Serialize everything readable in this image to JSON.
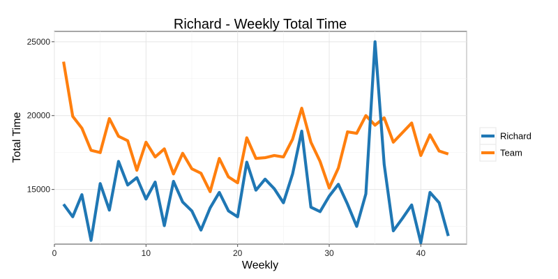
{
  "chart_data": {
    "type": "line",
    "title": "Richard - Weekly Total Time",
    "xlabel": "Weekly",
    "ylabel": "Total Time",
    "xlim": [
      0,
      45
    ],
    "ylim": [
      11300,
      25700
    ],
    "x_ticks": [
      0,
      10,
      20,
      30,
      40
    ],
    "y_ticks": [
      15000,
      20000,
      25000
    ],
    "x_tick_labels": [
      "0",
      "10",
      "20",
      "30",
      "40"
    ],
    "y_tick_labels": [
      "15000",
      "20000",
      "25000"
    ],
    "grid": true,
    "legend_position": "right",
    "x": [
      1,
      2,
      3,
      4,
      5,
      6,
      7,
      8,
      9,
      10,
      11,
      12,
      13,
      14,
      15,
      16,
      17,
      18,
      19,
      20,
      21,
      22,
      23,
      24,
      25,
      26,
      27,
      28,
      29,
      30,
      31,
      32,
      33,
      34,
      35,
      36,
      37,
      38,
      39,
      40,
      41,
      42,
      43
    ],
    "series": [
      {
        "name": "Richard",
        "color": "#1f77b4",
        "values": [
          14000,
          13150,
          14650,
          11550,
          15400,
          13600,
          16900,
          15300,
          15800,
          14350,
          15500,
          12550,
          15550,
          14150,
          13550,
          12250,
          13750,
          14800,
          13550,
          13150,
          16850,
          14950,
          15700,
          15050,
          14100,
          16050,
          18950,
          13800,
          13500,
          14550,
          15350,
          14000,
          12500,
          14700,
          25000,
          16700,
          12200,
          13050,
          13950,
          11400,
          14800,
          14100,
          11850
        ]
      },
      {
        "name": "Team",
        "color": "#ff7f0e",
        "values": [
          23650,
          19950,
          19150,
          17650,
          17500,
          19800,
          18600,
          18300,
          16300,
          18200,
          17200,
          17750,
          16050,
          17450,
          16400,
          16100,
          14850,
          17100,
          15850,
          15450,
          18500,
          17100,
          17150,
          17300,
          17200,
          18400,
          20500,
          18200,
          16900,
          15100,
          16450,
          18900,
          18800,
          20000,
          19350,
          19850,
          18200,
          18850,
          19500,
          17300,
          18700,
          17600,
          17400
        ]
      }
    ]
  }
}
